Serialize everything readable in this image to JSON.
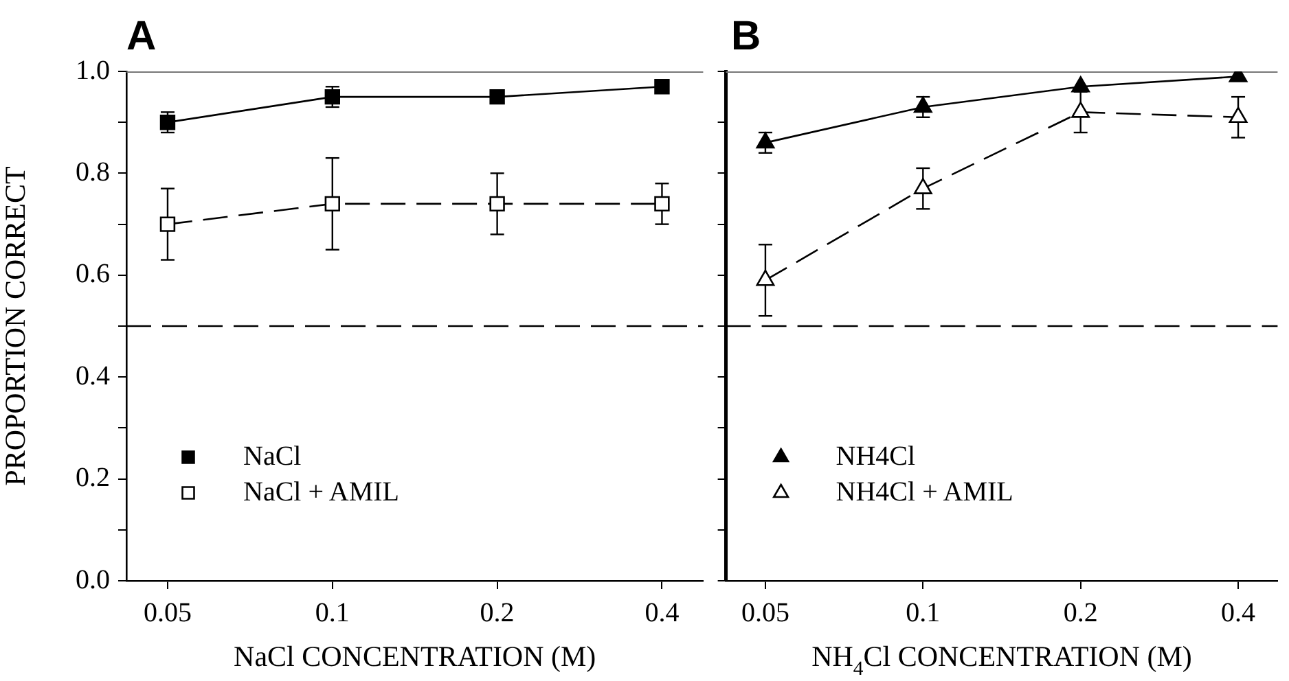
{
  "chart_data": [
    {
      "type": "line",
      "title": "A",
      "xlabel": "NaCl CONCENTRATION (M)",
      "ylabel": "PROPORTION CORRECT",
      "categories": [
        "0.05",
        "0.1",
        "0.2",
        "0.4"
      ],
      "series": [
        {
          "name": "NaCl",
          "color": "#000000",
          "values": [
            0.9,
            0.95,
            0.95,
            0.97
          ],
          "errors": [
            0.02,
            0.02,
            null,
            null
          ],
          "marker": "square",
          "line_style": "solid"
        },
        {
          "name": "NaCl + AMIL",
          "color": "#000000",
          "values": [
            0.7,
            0.74,
            0.74,
            0.74
          ],
          "errors": [
            0.07,
            0.09,
            0.06,
            0.04
          ],
          "marker": "square",
          "line_style": "dashed"
        }
      ],
      "ylim": [
        0,
        1
      ],
      "yticks": [
        {
          "value": 0,
          "label": "0.0"
        },
        {
          "value": 0.1,
          "label": null
        },
        0.2,
        {
          "value": 0.3,
          "label": null
        },
        0.4,
        {
          "value": 0.5,
          "label": null
        },
        0.6,
        {
          "value": 0.7,
          "label": null
        },
        0.8,
        {
          "value": 0.9,
          "label": null
        },
        {
          "value": 1,
          "label": "1.0"
        }
      ],
      "ref_lines": [
        {
          "axis": "y",
          "value": 0.5,
          "color": "#000000",
          "line_style": "dashed"
        }
      ],
      "legend": "bottom left",
      "grid": false
    },
    {
      "type": "line",
      "title": "B",
      "xlabel": "NH$_{4}$Cl CONCENTRATION (M)",
      "categories": [
        "0.05",
        "0.1",
        "0.2",
        "0.4"
      ],
      "series": [
        {
          "name": "NH4Cl",
          "color": "#000000",
          "values": [
            0.86,
            0.93,
            0.97,
            0.99
          ],
          "errors": [
            0.02,
            0.02,
            null,
            null
          ],
          "marker": "triangle",
          "line_style": "solid"
        },
        {
          "name": "NH4Cl + AMIL",
          "color": "#000000",
          "values": [
            0.59,
            0.77,
            0.92,
            0.91
          ],
          "errors": [
            0.07,
            0.04,
            0.04,
            0.04
          ],
          "marker": "triangle",
          "line_style": "dashed"
        }
      ],
      "ylim": [
        0,
        1
      ],
      "yticks": [
        0,
        0.1,
        0.2,
        0.3,
        0.4,
        0.5,
        0.6,
        0.7,
        0.8,
        0.9,
        1
      ],
      "ref_lines": [
        {
          "axis": "y",
          "value": 0.5,
          "color": "#000000",
          "line_style": "dashed"
        }
      ],
      "legend": "bottom left",
      "grid": false,
      "tick_labels": "x"
    }
  ]
}
